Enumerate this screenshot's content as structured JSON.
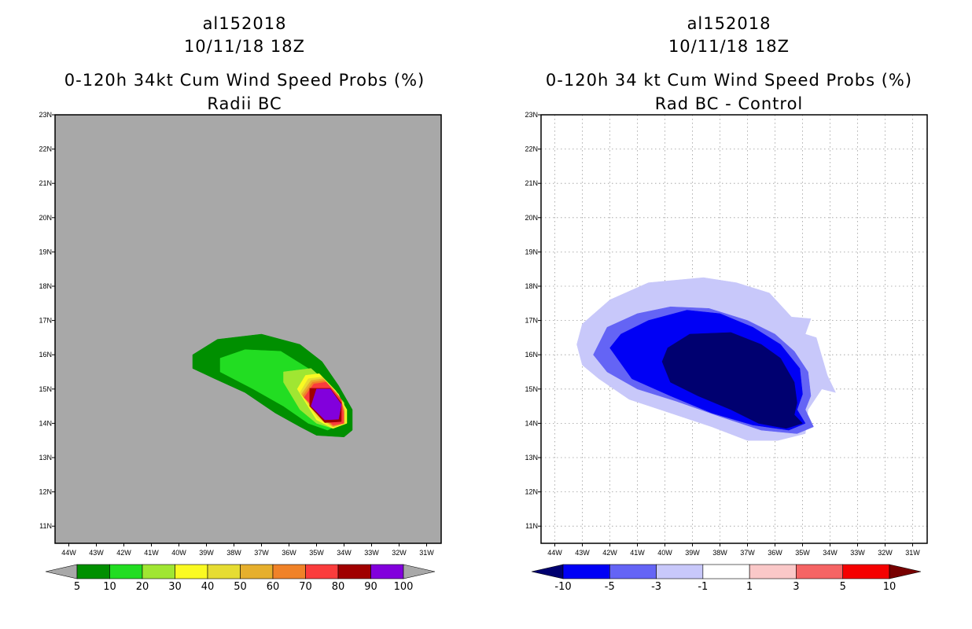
{
  "chart_data": [
    {
      "type": "contour-map",
      "storm_id": "al152018",
      "datetime": "10/11/18 18Z",
      "title": "0-120h 34kt Cum Wind Speed Probs (%)",
      "subtitle": "Radii BC",
      "lon_ticks": [
        "44W",
        "43W",
        "42W",
        "41W",
        "40W",
        "39W",
        "38W",
        "37W",
        "36W",
        "35W",
        "34W",
        "33W",
        "32W",
        "31W"
      ],
      "lat_ticks": [
        "11N",
        "12N",
        "13N",
        "14N",
        "15N",
        "16N",
        "17N",
        "18N",
        "19N",
        "20N",
        "21N",
        "22N",
        "23N"
      ],
      "lon_range": [
        -44.5,
        -30.5
      ],
      "lat_range": [
        10.5,
        23
      ],
      "gridlines": false,
      "background": "#a8a8a8",
      "colorbar": {
        "labels": [
          "5",
          "10",
          "20",
          "30",
          "40",
          "50",
          "60",
          "70",
          "80",
          "90",
          "100"
        ],
        "colors": [
          "#008f00",
          "#22dd22",
          "#a0e632",
          "#fafa22",
          "#e6dc32",
          "#e6af2d",
          "#f08228",
          "#fa3c3c",
          "#a00000",
          "#8200dc"
        ],
        "end_colors": [
          "#a8a8a8",
          "#a8a8a8"
        ]
      },
      "contours": [
        {
          "level": 5,
          "color": "#008f00",
          "polygon": [
            [
              -39.5,
              15.6
            ],
            [
              -39.5,
              16.0
            ],
            [
              -38.6,
              16.45
            ],
            [
              -37.0,
              16.6
            ],
            [
              -35.6,
              16.3
            ],
            [
              -34.8,
              15.8
            ],
            [
              -34.2,
              15.1
            ],
            [
              -33.7,
              14.4
            ],
            [
              -33.7,
              13.8
            ],
            [
              -34.0,
              13.6
            ],
            [
              -35.0,
              13.65
            ],
            [
              -35.6,
              13.9
            ],
            [
              -36.5,
              14.3
            ],
            [
              -37.6,
              14.9
            ],
            [
              -38.7,
              15.3
            ]
          ]
        },
        {
          "level": 10,
          "color": "#22dd22",
          "polygon": [
            [
              -38.5,
              15.5
            ],
            [
              -38.5,
              15.9
            ],
            [
              -37.6,
              16.15
            ],
            [
              -36.3,
              16.1
            ],
            [
              -35.3,
              15.6
            ],
            [
              -34.6,
              15.0
            ],
            [
              -34.1,
              14.5
            ],
            [
              -34.1,
              14.0
            ],
            [
              -34.6,
              13.8
            ],
            [
              -35.3,
              14.0
            ],
            [
              -36.2,
              14.5
            ],
            [
              -37.3,
              15.0
            ]
          ]
        },
        {
          "level": 20,
          "color": "#a0e632",
          "polygon": [
            [
              -36.2,
              15.2
            ],
            [
              -36.2,
              15.5
            ],
            [
              -35.2,
              15.6
            ],
            [
              -34.5,
              15.1
            ],
            [
              -34.0,
              14.6
            ],
            [
              -34.0,
              14.1
            ],
            [
              -34.4,
              13.85
            ],
            [
              -35.0,
              14.0
            ],
            [
              -35.6,
              14.4
            ]
          ]
        },
        {
          "level": 30,
          "color": "#fafa22",
          "polygon": [
            [
              -35.7,
              15.0
            ],
            [
              -35.4,
              15.4
            ],
            [
              -34.9,
              15.45
            ],
            [
              -34.3,
              14.95
            ],
            [
              -33.9,
              14.4
            ],
            [
              -33.9,
              14.0
            ],
            [
              -34.4,
              13.85
            ],
            [
              -35.0,
              14.1
            ]
          ]
        },
        {
          "level": 40,
          "color": "#e6dc32",
          "polygon": [
            [
              -35.6,
              14.9
            ],
            [
              -35.3,
              15.3
            ],
            [
              -34.8,
              15.35
            ],
            [
              -34.2,
              14.85
            ],
            [
              -33.95,
              14.4
            ],
            [
              -33.95,
              14.0
            ],
            [
              -34.4,
              13.88
            ],
            [
              -34.95,
              14.15
            ]
          ]
        },
        {
          "level": 50,
          "color": "#e6af2d",
          "polygon": [
            [
              -35.55,
              14.85
            ],
            [
              -35.2,
              15.25
            ],
            [
              -34.75,
              15.3
            ],
            [
              -34.2,
              14.8
            ],
            [
              -34.0,
              14.4
            ],
            [
              -34.0,
              14.0
            ],
            [
              -34.4,
              13.9
            ],
            [
              -34.9,
              14.2
            ]
          ]
        },
        {
          "level": 60,
          "color": "#f08228",
          "polygon": [
            [
              -35.5,
              14.8
            ],
            [
              -35.15,
              15.2
            ],
            [
              -34.7,
              15.25
            ],
            [
              -34.15,
              14.75
            ],
            [
              -34.0,
              14.35
            ],
            [
              -34.0,
              14.0
            ],
            [
              -34.4,
              13.92
            ],
            [
              -34.85,
              14.2
            ]
          ]
        },
        {
          "level": 70,
          "color": "#fa3c3c",
          "polygon": [
            [
              -35.45,
              14.75
            ],
            [
              -35.1,
              15.15
            ],
            [
              -34.65,
              15.2
            ],
            [
              -34.1,
              14.7
            ],
            [
              -34.02,
              14.3
            ],
            [
              -34.02,
              14.0
            ],
            [
              -34.4,
              13.95
            ],
            [
              -34.8,
              14.25
            ]
          ]
        },
        {
          "level": 80,
          "color": "#a00000",
          "polygon": [
            [
              -35.25,
              14.5
            ],
            [
              -35.25,
              15.02
            ],
            [
              -34.5,
              15.02
            ],
            [
              -34.1,
              14.6
            ],
            [
              -34.1,
              14.05
            ],
            [
              -34.7,
              14.02
            ]
          ]
        },
        {
          "level": 90,
          "color": "#8200dc",
          "polygon": [
            [
              -35.2,
              14.5
            ],
            [
              -35.0,
              15.0
            ],
            [
              -34.5,
              15.0
            ],
            [
              -34.1,
              14.55
            ],
            [
              -34.2,
              14.12
            ],
            [
              -34.7,
              14.1
            ]
          ]
        }
      ]
    },
    {
      "type": "contour-map",
      "storm_id": "al152018",
      "datetime": "10/11/18 18Z",
      "title": "0-120h 34 kt Cum Wind Speed Probs (%)",
      "subtitle": "Rad BC - Control",
      "lon_ticks": [
        "44W",
        "43W",
        "42W",
        "41W",
        "40W",
        "39W",
        "38W",
        "37W",
        "36W",
        "35W",
        "34W",
        "33W",
        "32W",
        "31W"
      ],
      "lat_ticks": [
        "11N",
        "12N",
        "13N",
        "14N",
        "15N",
        "16N",
        "17N",
        "18N",
        "19N",
        "20N",
        "21N",
        "22N",
        "23N"
      ],
      "lon_range": [
        -44.5,
        -30.5
      ],
      "lat_range": [
        10.5,
        23
      ],
      "gridlines": true,
      "background": "#ffffff",
      "colorbar": {
        "labels": [
          "-10",
          "-5",
          "-3",
          "-1",
          "1",
          "3",
          "5",
          "10"
        ],
        "colors": [
          "#0000f5",
          "#6464f5",
          "#c8c8fa",
          "#ffffff",
          "#fac8c8",
          "#f56464",
          "#f50000"
        ],
        "end_colors": [
          "#000070",
          "#780000"
        ]
      },
      "contours": [
        {
          "level": -1,
          "color": "#c8c8fa",
          "polygon": [
            [
              -43.2,
              16.3
            ],
            [
              -43.0,
              16.9
            ],
            [
              -42.0,
              17.6
            ],
            [
              -40.6,
              18.1
            ],
            [
              -38.6,
              18.25
            ],
            [
              -37.4,
              18.1
            ],
            [
              -36.2,
              17.8
            ],
            [
              -35.4,
              17.1
            ],
            [
              -34.7,
              17.05
            ],
            [
              -34.9,
              16.6
            ],
            [
              -34.5,
              16.5
            ],
            [
              -34.1,
              15.4
            ],
            [
              -33.8,
              14.9
            ],
            [
              -34.3,
              15.0
            ],
            [
              -34.8,
              14.4
            ],
            [
              -34.9,
              13.7
            ],
            [
              -35.9,
              13.5
            ],
            [
              -37.0,
              13.5
            ],
            [
              -38.3,
              13.9
            ],
            [
              -39.8,
              14.3
            ],
            [
              -41.3,
              14.7
            ],
            [
              -42.4,
              15.3
            ],
            [
              -43.0,
              15.7
            ]
          ]
        },
        {
          "level": -3,
          "color": "#6464f5",
          "polygon": [
            [
              -42.6,
              16.0
            ],
            [
              -42.1,
              16.8
            ],
            [
              -41.0,
              17.2
            ],
            [
              -39.8,
              17.4
            ],
            [
              -38.4,
              17.35
            ],
            [
              -37.0,
              17.0
            ],
            [
              -36.0,
              16.6
            ],
            [
              -35.3,
              16.1
            ],
            [
              -34.8,
              15.5
            ],
            [
              -34.7,
              14.8
            ],
            [
              -34.9,
              14.4
            ],
            [
              -34.6,
              13.9
            ],
            [
              -35.2,
              13.7
            ],
            [
              -36.5,
              13.8
            ],
            [
              -38.0,
              14.2
            ],
            [
              -39.6,
              14.65
            ],
            [
              -41.0,
              15.0
            ],
            [
              -42.1,
              15.5
            ]
          ]
        },
        {
          "level": -5,
          "color": "#0000f5",
          "polygon": [
            [
              -42.0,
              16.2
            ],
            [
              -41.6,
              16.6
            ],
            [
              -40.6,
              17.0
            ],
            [
              -39.2,
              17.3
            ],
            [
              -38.0,
              17.2
            ],
            [
              -36.8,
              16.8
            ],
            [
              -35.8,
              16.3
            ],
            [
              -35.1,
              15.6
            ],
            [
              -35.0,
              14.85
            ],
            [
              -35.2,
              14.4
            ],
            [
              -34.9,
              14.0
            ],
            [
              -35.5,
              13.8
            ],
            [
              -36.8,
              13.95
            ],
            [
              -38.3,
              14.3
            ],
            [
              -39.8,
              14.8
            ],
            [
              -41.2,
              15.3
            ]
          ]
        },
        {
          "level": -10,
          "color": "#000070",
          "polygon": [
            [
              -40.1,
              15.8
            ],
            [
              -39.9,
              16.2
            ],
            [
              -39.1,
              16.6
            ],
            [
              -37.6,
              16.65
            ],
            [
              -36.5,
              16.3
            ],
            [
              -35.8,
              15.9
            ],
            [
              -35.3,
              15.2
            ],
            [
              -35.2,
              14.6
            ],
            [
              -35.3,
              14.25
            ],
            [
              -35.0,
              14.0
            ],
            [
              -35.6,
              13.85
            ],
            [
              -36.6,
              14.0
            ],
            [
              -37.6,
              14.4
            ],
            [
              -38.8,
              14.8
            ],
            [
              -39.8,
              15.2
            ]
          ]
        }
      ]
    }
  ]
}
